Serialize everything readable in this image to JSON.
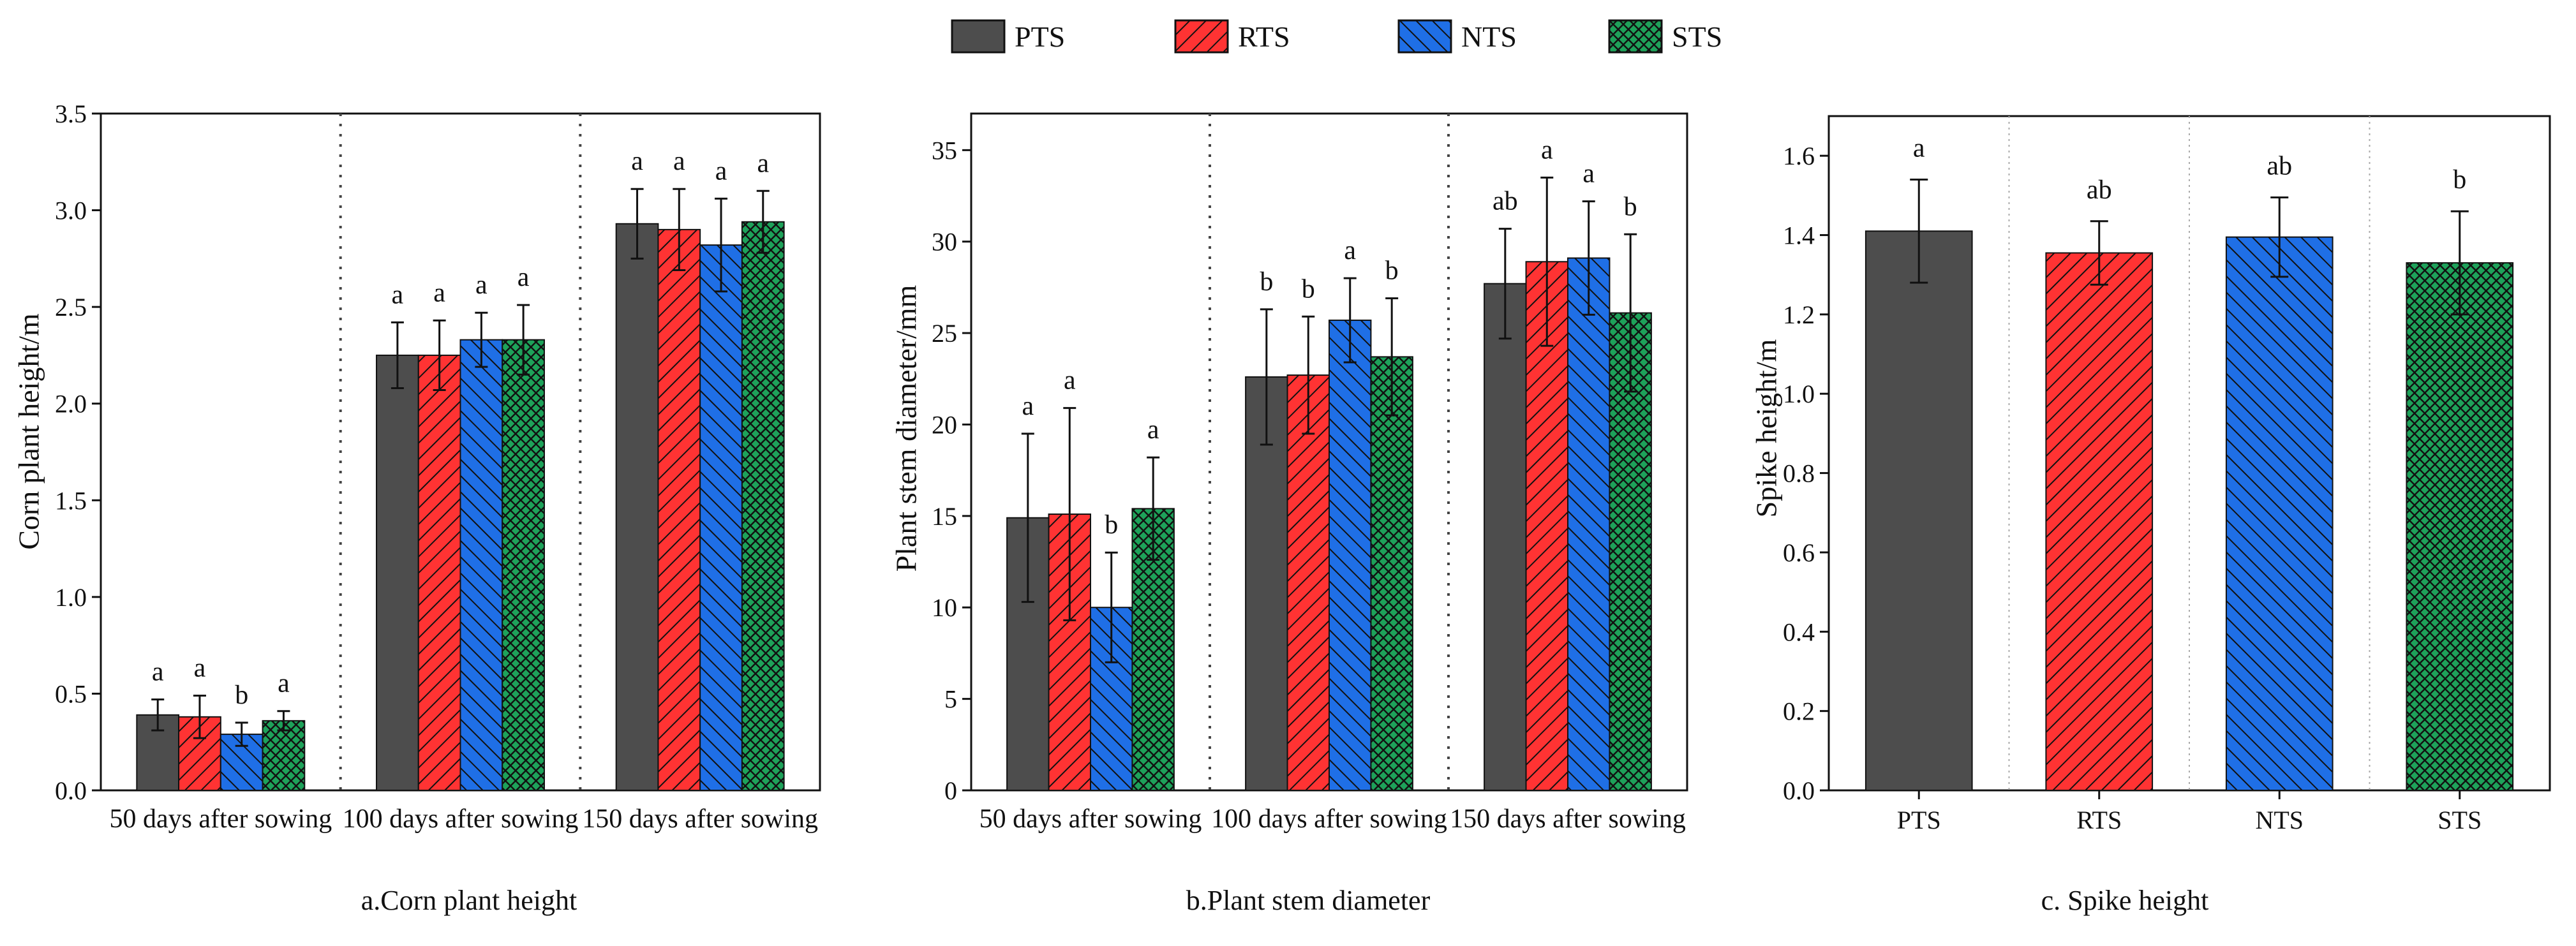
{
  "legend": [
    {
      "name": "PTS",
      "color": "#4d4d4d",
      "pattern": "solid"
    },
    {
      "name": "RTS",
      "color": "#ff3333",
      "pattern": "diag-right"
    },
    {
      "name": "NTS",
      "color": "#1f6fe6",
      "pattern": "diag-left"
    },
    {
      "name": "STS",
      "color": "#1ea25a",
      "pattern": "cross"
    }
  ],
  "chart_data": [
    {
      "type": "bar",
      "title": "a.Corn plant height",
      "ylabel": "Corn plant height/m",
      "xlabel": "",
      "ylim": [
        0,
        3.5
      ],
      "yticks": [
        "0.0",
        "0.5",
        "1.0",
        "1.5",
        "2.0",
        "2.5",
        "3.0",
        "3.5"
      ],
      "categories": [
        "50 days after sowing",
        "100 days after sowing",
        "150 days after sowing"
      ],
      "series": [
        {
          "name": "PTS",
          "values": [
            0.39,
            2.25,
            2.93
          ],
          "errors": [
            0.08,
            0.17,
            0.18
          ],
          "letters": [
            "a",
            "a",
            "a"
          ]
        },
        {
          "name": "RTS",
          "values": [
            0.38,
            2.25,
            2.9
          ],
          "errors": [
            0.11,
            0.18,
            0.21
          ],
          "letters": [
            "a",
            "a",
            "a"
          ]
        },
        {
          "name": "NTS",
          "values": [
            0.29,
            2.33,
            2.82
          ],
          "errors": [
            0.06,
            0.14,
            0.24
          ],
          "letters": [
            "b",
            "a",
            "a"
          ]
        },
        {
          "name": "STS",
          "values": [
            0.36,
            2.33,
            2.94
          ],
          "errors": [
            0.05,
            0.18,
            0.16
          ],
          "letters": [
            "a",
            "a",
            "a"
          ]
        }
      ]
    },
    {
      "type": "bar",
      "title": "b.Plant stem diameter",
      "ylabel": "Plant stem diameter/mm",
      "xlabel": "",
      "ylim": [
        0,
        37
      ],
      "yticks": [
        "0",
        "5",
        "10",
        "15",
        "20",
        "25",
        "30",
        "35"
      ],
      "categories": [
        "50 days after sowing",
        "100 days after sowing",
        "150 days after sowing"
      ],
      "series": [
        {
          "name": "PTS",
          "values": [
            14.9,
            22.6,
            27.7
          ],
          "errors": [
            4.6,
            3.7,
            3.0
          ],
          "letters": [
            "a",
            "b",
            "ab"
          ]
        },
        {
          "name": "RTS",
          "values": [
            15.1,
            22.7,
            28.9
          ],
          "errors": [
            5.8,
            3.2,
            4.6
          ],
          "letters": [
            "a",
            "b",
            "a"
          ]
        },
        {
          "name": "NTS",
          "values": [
            10.0,
            25.7,
            29.1
          ],
          "errors": [
            3.0,
            2.3,
            3.1
          ],
          "letters": [
            "b",
            "a",
            "a"
          ]
        },
        {
          "name": "STS",
          "values": [
            15.4,
            23.7,
            26.1
          ],
          "errors": [
            2.8,
            3.2,
            4.3
          ],
          "letters": [
            "a",
            "b",
            "b"
          ]
        }
      ]
    },
    {
      "type": "bar",
      "title": "c. Spike height",
      "ylabel": "Spike height/m",
      "xlabel": "",
      "ylim": [
        0,
        1.7
      ],
      "yticks": [
        "0.0",
        "0.2",
        "0.4",
        "0.6",
        "0.8",
        "1.0",
        "1.2",
        "1.4",
        "1.6"
      ],
      "categories": [
        "PTS",
        "RTS",
        "NTS",
        "STS"
      ],
      "values": [
        1.41,
        1.355,
        1.395,
        1.33
      ],
      "errors": [
        0.13,
        0.08,
        0.1,
        0.13
      ],
      "letters": [
        "a",
        "ab",
        "ab",
        "b"
      ]
    }
  ]
}
